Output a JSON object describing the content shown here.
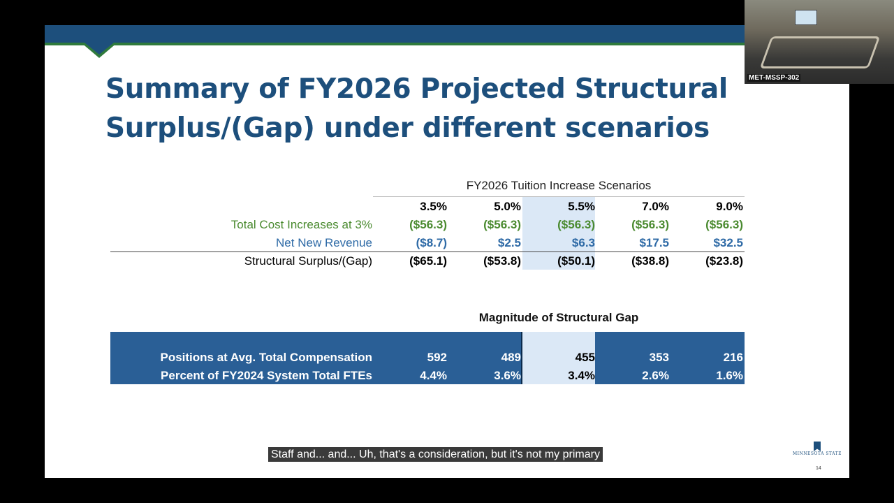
{
  "slide": {
    "title": "Summary of FY2026 Projected Structural\nSurplus/(Gap) under different scenarios",
    "page_number": "14",
    "logo_text": "MINNESOTA STATE"
  },
  "scenarios_table": {
    "group_label": "FY2026 Tuition Increase Scenarios",
    "columns": [
      "3.5%",
      "5.0%",
      "5.5%",
      "7.0%",
      "9.0%"
    ],
    "highlighted_column": "5.5%",
    "rows": [
      {
        "label": "Total Cost Increases at 3%",
        "values": [
          "($56.3)",
          "($56.3)",
          "($56.3)",
          "($56.3)",
          "($56.3)"
        ],
        "color": "#4a8a2f"
      },
      {
        "label": "Net New Revenue",
        "values": [
          "($8.7)",
          "$2.5",
          "$6.3",
          "$17.5",
          "$32.5"
        ],
        "color": "#2e6aa6"
      },
      {
        "label": "Structural Surplus/(Gap)",
        "values": [
          "($65.1)",
          "($53.8)",
          "($50.1)",
          "($38.8)",
          "($23.8)"
        ],
        "color": "#000000"
      }
    ]
  },
  "gap_table": {
    "title": "Magnitude of Structural Gap",
    "rows": [
      {
        "label": "Positions at Avg. Total Compensation",
        "values": [
          "592",
          "489",
          "455",
          "353",
          "216"
        ]
      },
      {
        "label": "Percent of FY2024 System Total FTEs",
        "values": [
          "4.4%",
          "3.6%",
          "3.4%",
          "2.6%",
          "1.6%"
        ]
      }
    ]
  },
  "webcam": {
    "label": "MET-MSSP-302"
  },
  "caption": {
    "text": "Staff and... and... Uh, that's a consideration, but it's not my primary"
  },
  "colors": {
    "title": "#1d4f7c",
    "header_band": "#1d4f7c",
    "header_accent": "#2f7a3c",
    "gap_band": "#2a5f96",
    "highlight": "#dbe8f6"
  }
}
